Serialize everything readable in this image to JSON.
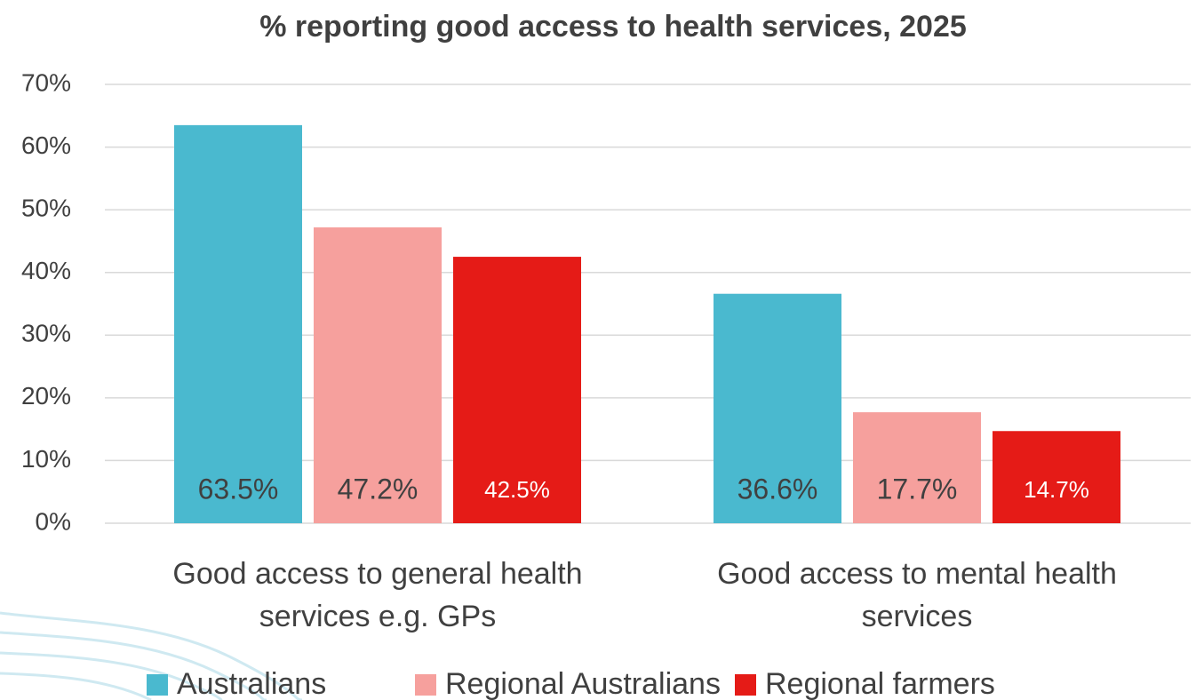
{
  "chart_data": {
    "type": "bar",
    "title": "% reporting good access to health services, 2025",
    "categories": [
      "Good access to general health services e.g. GPs",
      "Good access to mental health services"
    ],
    "series": [
      {
        "name": "Australians",
        "color": "#4ab9cf",
        "values": [
          63.5,
          36.6
        ],
        "value_labels": [
          "63.5%",
          "36.6%"
        ]
      },
      {
        "name": "Regional Australians",
        "color": "#f6a09d",
        "values": [
          47.2,
          17.7
        ],
        "value_labels": [
          "47.2%",
          "17.7%"
        ]
      },
      {
        "name": "Regional farmers",
        "color": "#e51b17",
        "values": [
          42.5,
          14.7
        ],
        "value_labels": [
          "42.5%",
          "14.7%"
        ]
      }
    ],
    "ylim": [
      0,
      70
    ],
    "yticks": [
      {
        "value": 0,
        "label": "0%"
      },
      {
        "value": 10,
        "label": "10%"
      },
      {
        "value": 20,
        "label": "20%"
      },
      {
        "value": 30,
        "label": "30%"
      },
      {
        "value": 40,
        "label": "40%"
      },
      {
        "value": 50,
        "label": "50%"
      },
      {
        "value": 60,
        "label": "60%"
      },
      {
        "value": 70,
        "label": "70%"
      }
    ],
    "grid": true,
    "legend": "bottom"
  }
}
